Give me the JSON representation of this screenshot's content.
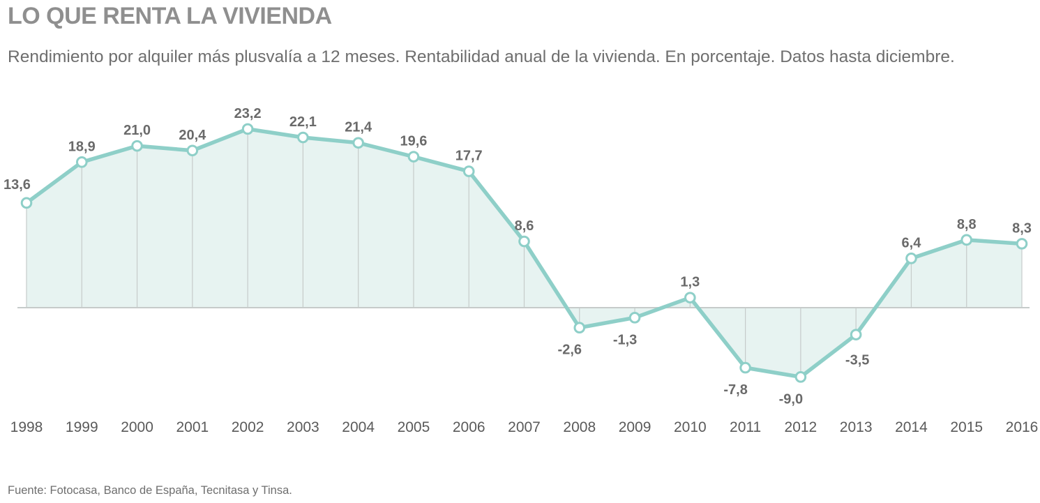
{
  "header": {
    "title": "LO QUE RENTA LA VIVIENDA",
    "subtitle": "Rendimiento por alquiler más plusvalía a 12 meses. Rentabilidad anual de la vivienda. En porcentaje. Datos hasta diciembre."
  },
  "footer": {
    "source": "Fuente: Fotocasa, Banco de España, Tecnitasa y Tinsa."
  },
  "colors": {
    "line": "#8ecfc8",
    "area": "#e7f3f1",
    "axis": "#c6cbca",
    "text": "#6a6a6a"
  },
  "chart_data": {
    "type": "area",
    "title": "LO QUE RENTA LA VIVIENDA",
    "xlabel": "",
    "ylabel": "",
    "ylim": [
      -9.0,
      23.2
    ],
    "grid": false,
    "legend": "none",
    "categories": [
      "1998",
      "1999",
      "2000",
      "2001",
      "2002",
      "2003",
      "2004",
      "2005",
      "2006",
      "2007",
      "2008",
      "2009",
      "2010",
      "2011",
      "2012",
      "2013",
      "2014",
      "2015",
      "2016"
    ],
    "values": [
      13.6,
      18.9,
      21.0,
      20.4,
      23.2,
      22.1,
      21.4,
      19.6,
      17.7,
      8.6,
      -2.6,
      -1.3,
      1.3,
      -7.8,
      -9.0,
      -3.5,
      6.4,
      8.8,
      8.3
    ],
    "value_labels": [
      "13,6",
      "18,9",
      "21,0",
      "20,4",
      "23,2",
      "22,1",
      "21,4",
      "19,6",
      "17,7",
      "8,6",
      "-2,6",
      "-1,3",
      "1,3",
      "-7,8",
      "-9,0",
      "-3,5",
      "6,4",
      "8,8",
      "8,3"
    ]
  }
}
